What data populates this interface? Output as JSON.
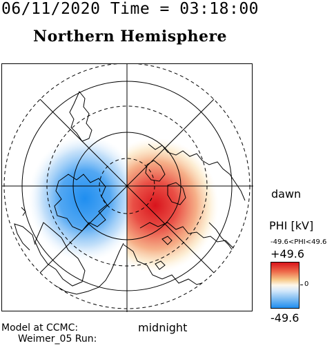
{
  "header": {
    "date_time": "06/11/2020 Time = 03:18:00",
    "hemisphere": "Northern Hemisphere"
  },
  "labels": {
    "dawn": "dawn",
    "midnight": "midnight",
    "model": "Model at CCMC:",
    "run": "Weimer_05 Run:"
  },
  "colorbar": {
    "title": "PHI [kV]",
    "range_text": "-49.6<PHI<49.6",
    "max": "+49.6",
    "zero": "0",
    "min": "-49.6",
    "colors": {
      "max": "#d8141c",
      "mid": "#fdf7ea",
      "min": "#1f8ef0"
    }
  },
  "potential_cells": [
    {
      "name": "dusk-cell",
      "polarity": "negative",
      "color": "#1f8ef0"
    },
    {
      "name": "dawn-cell",
      "polarity": "positive",
      "color": "#d8141c"
    }
  ]
}
